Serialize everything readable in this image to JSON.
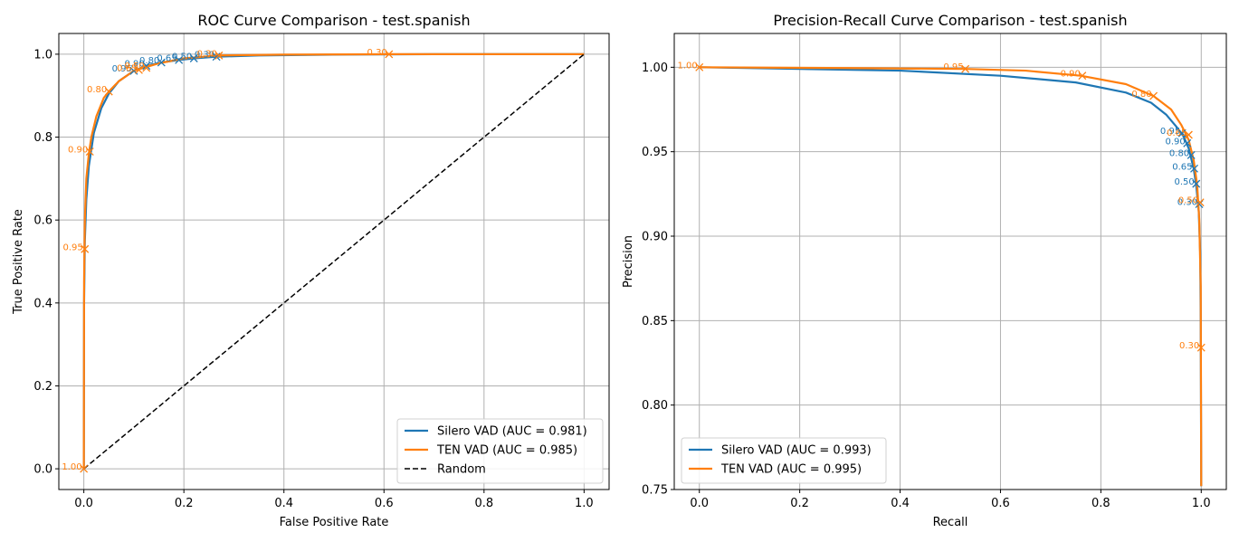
{
  "colors": {
    "silero": "#1f77b4",
    "ten": "#ff7f0e",
    "random": "#000000",
    "grid": "#b0b0b0"
  },
  "chart_data": [
    {
      "type": "line",
      "title": "ROC Curve Comparison - test.spanish",
      "xlabel": "False Positive Rate",
      "ylabel": "True Positive Rate",
      "xlim": [
        -0.05,
        1.05
      ],
      "ylim": [
        -0.05,
        1.05
      ],
      "xticks": [
        "0.0",
        "0.2",
        "0.4",
        "0.6",
        "0.8",
        "1.0"
      ],
      "yticks": [
        "0.0",
        "0.2",
        "0.4",
        "0.6",
        "0.8",
        "1.0"
      ],
      "grid": true,
      "legend_position": "lower-right",
      "series": [
        {
          "name": "Silero VAD (AUC = 0.981)",
          "color": "#1f77b4",
          "x": [
            0,
            0.0005,
            0.002,
            0.005,
            0.01,
            0.02,
            0.035,
            0.05,
            0.07,
            0.1,
            0.125,
            0.155,
            0.19,
            0.22,
            0.265,
            0.35,
            0.5,
            0.7,
            1.0
          ],
          "y": [
            0,
            0.4,
            0.55,
            0.65,
            0.73,
            0.81,
            0.87,
            0.905,
            0.935,
            0.96,
            0.972,
            0.98,
            0.986,
            0.99,
            0.994,
            0.997,
            0.999,
            1.0,
            1.0
          ],
          "markers": [
            {
              "x": 0.1,
              "y": 0.96,
              "label": "0.95"
            },
            {
              "x": 0.125,
              "y": 0.972,
              "label": "0.90"
            },
            {
              "x": 0.155,
              "y": 0.98,
              "label": "0.80"
            },
            {
              "x": 0.19,
              "y": 0.986,
              "label": "0.65"
            },
            {
              "x": 0.22,
              "y": 0.99,
              "label": "0.50"
            },
            {
              "x": 0.265,
              "y": 0.994,
              "label": "0.30"
            }
          ]
        },
        {
          "name": "TEN VAD (AUC = 0.985)",
          "color": "#ff7f0e",
          "x": [
            0,
            0.0005,
            0.002,
            0.005,
            0.01,
            0.015,
            0.025,
            0.04,
            0.05,
            0.07,
            0.1,
            0.15,
            0.2,
            0.27,
            0.4,
            0.61,
            1.0
          ],
          "y": [
            0,
            0.45,
            0.6,
            0.7,
            0.76,
            0.8,
            0.85,
            0.895,
            0.91,
            0.935,
            0.96,
            0.978,
            0.99,
            0.997,
            0.999,
            1.0,
            1.0
          ],
          "markers": [
            {
              "x": 0.0,
              "y": 0.0,
              "label": "1.00"
            },
            {
              "x": 0.002,
              "y": 0.53,
              "label": "0.95"
            },
            {
              "x": 0.012,
              "y": 0.765,
              "label": "0.90"
            },
            {
              "x": 0.05,
              "y": 0.91,
              "label": "0.80"
            },
            {
              "x": 0.11,
              "y": 0.962,
              "label": "0.65"
            },
            {
              "x": 0.125,
              "y": 0.967,
              "label": "0.50"
            },
            {
              "x": 0.27,
              "y": 0.997,
              "label": "0.30"
            },
            {
              "x": 0.61,
              "y": 1.0,
              "label": "0.30"
            }
          ]
        },
        {
          "name": "Random",
          "color": "#000000",
          "dashed": true,
          "x": [
            0,
            1
          ],
          "y": [
            0,
            1
          ]
        }
      ]
    },
    {
      "type": "line",
      "title": "Precision-Recall Curve Comparison - test.spanish",
      "xlabel": "Recall",
      "ylabel": "Precision",
      "xlim": [
        -0.05,
        1.05
      ],
      "ylim": [
        0.75,
        1.02
      ],
      "xticks": [
        "0.0",
        "0.2",
        "0.4",
        "0.6",
        "0.8",
        "1.0"
      ],
      "yticks": [
        "0.75",
        "0.80",
        "0.85",
        "0.90",
        "0.95",
        "1.00"
      ],
      "grid": true,
      "legend_position": "lower-left",
      "series": [
        {
          "name": "Silero VAD (AUC = 0.993)",
          "color": "#1f77b4",
          "x": [
            0,
            0.2,
            0.4,
            0.6,
            0.75,
            0.85,
            0.9,
            0.93,
            0.95,
            0.965,
            0.975,
            0.985,
            0.99,
            0.995,
            0.998,
            0.999,
            1.0
          ],
          "y": [
            1.0,
            0.999,
            0.998,
            0.995,
            0.991,
            0.985,
            0.979,
            0.972,
            0.965,
            0.959,
            0.952,
            0.94,
            0.93,
            0.915,
            0.89,
            0.85,
            0.752
          ],
          "markers": [
            {
              "x": 0.962,
              "y": 0.961,
              "label": "0.95"
            },
            {
              "x": 0.972,
              "y": 0.955,
              "label": "0.90"
            },
            {
              "x": 0.98,
              "y": 0.948,
              "label": "0.80"
            },
            {
              "x": 0.986,
              "y": 0.94,
              "label": "0.65"
            },
            {
              "x": 0.99,
              "y": 0.931,
              "label": "0.50"
            },
            {
              "x": 0.996,
              "y": 0.919,
              "label": "0.30"
            }
          ]
        },
        {
          "name": "TEN VAD (AUC = 0.995)",
          "color": "#ff7f0e",
          "x": [
            0,
            0.3,
            0.53,
            0.65,
            0.76,
            0.85,
            0.905,
            0.94,
            0.96,
            0.975,
            0.985,
            0.992,
            0.996,
            0.999,
            1.0
          ],
          "y": [
            1.0,
            0.9995,
            0.999,
            0.998,
            0.995,
            0.99,
            0.983,
            0.975,
            0.966,
            0.957,
            0.945,
            0.93,
            0.91,
            0.87,
            0.752
          ],
          "markers": [
            {
              "x": 0.0,
              "y": 1.0,
              "label": "1.00"
            },
            {
              "x": 0.53,
              "y": 0.999,
              "label": "0.95"
            },
            {
              "x": 0.763,
              "y": 0.995,
              "label": "0.90"
            },
            {
              "x": 0.905,
              "y": 0.983,
              "label": "0.80"
            },
            {
              "x": 0.975,
              "y": 0.96,
              "label": "0.65"
            },
            {
              "x": 0.998,
              "y": 0.92,
              "label": "0.50"
            },
            {
              "x": 1.0,
              "y": 0.834,
              "label": "0.30"
            }
          ]
        }
      ]
    }
  ]
}
